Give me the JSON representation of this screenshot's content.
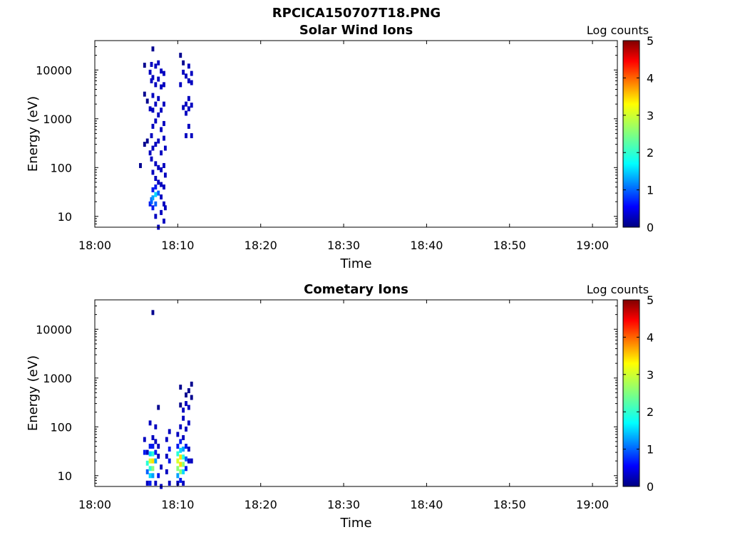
{
  "figure_title": "RPCICA150707T18.PNG",
  "colors": {
    "bins": [
      "#00008f",
      "#0000c0",
      "#0018f0",
      "#0060ff",
      "#00a0ff",
      "#00d8ff",
      "#28ffd8",
      "#88ff78",
      "#d8ff28",
      "#ffe000"
    ]
  },
  "chart_data": [
    {
      "type": "heatmap",
      "title": "Solar Wind Ions",
      "xlabel": "Time",
      "ylabel": "Energy (eV)",
      "x_unit": "time of day (HH:MM)",
      "xlim": [
        "18:00",
        "19:03"
      ],
      "xticks": [
        "18:00",
        "18:10",
        "18:20",
        "18:30",
        "18:40",
        "18:50",
        "19:00"
      ],
      "ylim_eV": [
        6,
        40000
      ],
      "yscale": "log",
      "yticks": [
        "10",
        "100",
        "1000",
        "10000"
      ],
      "colorbar": {
        "label": "Log counts",
        "range": [
          0,
          5
        ],
        "ticks": [
          "0",
          "1",
          "2",
          "3",
          "4",
          "5"
        ]
      },
      "grid": false,
      "cells": [
        [
          "18:05:30",
          110,
          0.2
        ],
        [
          "18:06:00",
          300,
          0.2
        ],
        [
          "18:06:00",
          3200,
          0.2
        ],
        [
          "18:06:00",
          12500,
          0.2
        ],
        [
          "18:06:20",
          350,
          0.2
        ],
        [
          "18:06:20",
          2300,
          0.2
        ],
        [
          "18:06:40",
          18,
          0.7
        ],
        [
          "18:06:40",
          200,
          0.3
        ],
        [
          "18:06:40",
          1600,
          0.3
        ],
        [
          "18:06:40",
          9000,
          0.3
        ],
        [
          "18:06:50",
          20,
          0.9
        ],
        [
          "18:06:50",
          22,
          1.0
        ],
        [
          "18:06:50",
          150,
          0.3
        ],
        [
          "18:06:50",
          450,
          0.3
        ],
        [
          "18:06:50",
          6000,
          0.3
        ],
        [
          "18:06:50",
          13000,
          0.3
        ],
        [
          "18:07:00",
          15,
          0.6
        ],
        [
          "18:07:00",
          24,
          1.2
        ],
        [
          "18:07:00",
          35,
          0.6
        ],
        [
          "18:07:00",
          80,
          0.3
        ],
        [
          "18:07:00",
          250,
          0.3
        ],
        [
          "18:07:00",
          700,
          0.3
        ],
        [
          "18:07:00",
          1500,
          0.3
        ],
        [
          "18:07:00",
          3000,
          0.3
        ],
        [
          "18:07:00",
          7000,
          0.3
        ],
        [
          "18:07:00",
          27000,
          0.2
        ],
        [
          "18:07:20",
          10,
          0.5
        ],
        [
          "18:07:20",
          18,
          0.9
        ],
        [
          "18:07:20",
          28,
          1.5
        ],
        [
          "18:07:20",
          40,
          0.8
        ],
        [
          "18:07:20",
          60,
          0.3
        ],
        [
          "18:07:20",
          120,
          0.3
        ],
        [
          "18:07:20",
          300,
          0.3
        ],
        [
          "18:07:20",
          900,
          0.3
        ],
        [
          "18:07:20",
          2000,
          0.3
        ],
        [
          "18:07:20",
          5000,
          0.3
        ],
        [
          "18:07:20",
          12000,
          0.3
        ],
        [
          "18:07:40",
          6,
          0.4
        ],
        [
          "18:07:40",
          30,
          0.9
        ],
        [
          "18:07:40",
          50,
          0.4
        ],
        [
          "18:07:40",
          100,
          0.3
        ],
        [
          "18:07:40",
          350,
          0.3
        ],
        [
          "18:07:40",
          1200,
          0.3
        ],
        [
          "18:07:40",
          2600,
          0.3
        ],
        [
          "18:07:40",
          6500,
          0.3
        ],
        [
          "18:07:40",
          14000,
          0.3
        ],
        [
          "18:08:00",
          12,
          0.4
        ],
        [
          "18:08:00",
          25,
          0.5
        ],
        [
          "18:08:00",
          45,
          0.5
        ],
        [
          "18:08:00",
          90,
          0.3
        ],
        [
          "18:08:00",
          200,
          0.3
        ],
        [
          "18:08:00",
          600,
          0.3
        ],
        [
          "18:08:00",
          1500,
          0.3
        ],
        [
          "18:08:00",
          4500,
          0.3
        ],
        [
          "18:08:00",
          9500,
          0.3
        ],
        [
          "18:08:20",
          8,
          0.4
        ],
        [
          "18:08:20",
          18,
          0.4
        ],
        [
          "18:08:20",
          40,
          0.4
        ],
        [
          "18:08:20",
          110,
          0.3
        ],
        [
          "18:08:20",
          400,
          0.3
        ],
        [
          "18:08:20",
          800,
          0.3
        ],
        [
          "18:08:20",
          2000,
          0.3
        ],
        [
          "18:08:20",
          5000,
          0.3
        ],
        [
          "18:08:20",
          8500,
          0.3
        ],
        [
          "18:08:30",
          15,
          0.3
        ],
        [
          "18:08:30",
          70,
          0.3
        ],
        [
          "18:08:30",
          250,
          0.3
        ],
        [
          "18:10:20",
          5000,
          0.3
        ],
        [
          "18:10:20",
          20000,
          0.2
        ],
        [
          "18:10:40",
          1700,
          0.3
        ],
        [
          "18:10:40",
          9000,
          0.3
        ],
        [
          "18:10:40",
          14000,
          0.2
        ],
        [
          "18:11:00",
          450,
          0.3
        ],
        [
          "18:11:00",
          1300,
          0.3
        ],
        [
          "18:11:00",
          2000,
          0.3
        ],
        [
          "18:11:00",
          7500,
          0.3
        ],
        [
          "18:11:20",
          700,
          0.3
        ],
        [
          "18:11:20",
          1600,
          0.3
        ],
        [
          "18:11:20",
          2600,
          0.3
        ],
        [
          "18:11:20",
          6000,
          0.3
        ],
        [
          "18:11:20",
          12000,
          0.3
        ],
        [
          "18:11:40",
          450,
          0.3
        ],
        [
          "18:11:40",
          1900,
          0.3
        ],
        [
          "18:11:40",
          5500,
          0.3
        ],
        [
          "18:11:40",
          8500,
          0.3
        ]
      ]
    },
    {
      "type": "heatmap",
      "title": "Cometary Ions",
      "xlabel": "Time",
      "ylabel": "Energy (eV)",
      "x_unit": "time of day (HH:MM)",
      "xlim": [
        "18:00",
        "19:03"
      ],
      "xticks": [
        "18:00",
        "18:10",
        "18:20",
        "18:30",
        "18:40",
        "18:50",
        "19:00"
      ],
      "ylim_eV": [
        6,
        40000
      ],
      "yscale": "log",
      "yticks": [
        "10",
        "100",
        "1000",
        "10000"
      ],
      "colorbar": {
        "label": "Log counts",
        "range": [
          0,
          5
        ],
        "ticks": [
          "0",
          "1",
          "2",
          "3",
          "4",
          "5"
        ]
      },
      "grid": false,
      "cells": [
        [
          "18:06:00",
          30,
          0.6
        ],
        [
          "18:06:00",
          55,
          0.3
        ],
        [
          "18:06:20",
          7,
          0.5
        ],
        [
          "18:06:20",
          12,
          0.9
        ],
        [
          "18:06:20",
          18,
          1.8
        ],
        [
          "18:06:20",
          30,
          0.5
        ],
        [
          "18:06:40",
          7,
          0.8
        ],
        [
          "18:06:40",
          10,
          1.5
        ],
        [
          "18:06:40",
          14,
          2.0
        ],
        [
          "18:06:40",
          20,
          2.6
        ],
        [
          "18:06:40",
          28,
          1.6
        ],
        [
          "18:06:40",
          40,
          0.6
        ],
        [
          "18:06:40",
          120,
          0.3
        ],
        [
          "18:07:00",
          10,
          1.2
        ],
        [
          "18:07:00",
          14,
          2.2
        ],
        [
          "18:07:00",
          20,
          2.7
        ],
        [
          "18:07:00",
          28,
          2.0
        ],
        [
          "18:07:00",
          40,
          0.8
        ],
        [
          "18:07:00",
          60,
          0.3
        ],
        [
          "18:07:00",
          22000,
          0.2
        ],
        [
          "18:07:20",
          7,
          0.5
        ],
        [
          "18:07:20",
          20,
          1.2
        ],
        [
          "18:07:20",
          30,
          0.8
        ],
        [
          "18:07:20",
          50,
          0.4
        ],
        [
          "18:07:20",
          100,
          0.3
        ],
        [
          "18:07:40",
          10,
          0.6
        ],
        [
          "18:07:40",
          25,
          0.5
        ],
        [
          "18:07:40",
          40,
          0.3
        ],
        [
          "18:07:40",
          250,
          0.2
        ],
        [
          "18:08:00",
          6,
          0.4
        ],
        [
          "18:08:00",
          15,
          0.3
        ],
        [
          "18:08:40",
          12,
          0.4
        ],
        [
          "18:08:40",
          25,
          0.5
        ],
        [
          "18:08:40",
          55,
          0.3
        ],
        [
          "18:09:00",
          7,
          0.4
        ],
        [
          "18:09:00",
          20,
          0.6
        ],
        [
          "18:09:00",
          35,
          0.6
        ],
        [
          "18:09:00",
          80,
          0.3
        ],
        [
          "18:10:00",
          7,
          0.5
        ],
        [
          "18:10:00",
          10,
          1.4
        ],
        [
          "18:10:00",
          14,
          2.2
        ],
        [
          "18:10:00",
          20,
          2.5
        ],
        [
          "18:10:00",
          28,
          1.8
        ],
        [
          "18:10:00",
          40,
          0.8
        ],
        [
          "18:10:00",
          70,
          0.3
        ],
        [
          "18:10:20",
          8,
          0.8
        ],
        [
          "18:10:20",
          12,
          2.2
        ],
        [
          "18:10:20",
          17,
          2.9
        ],
        [
          "18:10:20",
          24,
          2.7
        ],
        [
          "18:10:20",
          33,
          1.6
        ],
        [
          "18:10:20",
          50,
          0.7
        ],
        [
          "18:10:20",
          100,
          0.3
        ],
        [
          "18:10:20",
          280,
          0.2
        ],
        [
          "18:10:20",
          650,
          0.2
        ],
        [
          "18:10:40",
          7,
          0.4
        ],
        [
          "18:10:40",
          12,
          1.6
        ],
        [
          "18:10:40",
          17,
          2.3
        ],
        [
          "18:10:40",
          24,
          2.0
        ],
        [
          "18:10:40",
          35,
          1.2
        ],
        [
          "18:10:40",
          60,
          0.4
        ],
        [
          "18:10:40",
          150,
          0.3
        ],
        [
          "18:10:40",
          220,
          0.3
        ],
        [
          "18:11:00",
          14,
          0.8
        ],
        [
          "18:11:00",
          22,
          1.0
        ],
        [
          "18:11:00",
          40,
          0.6
        ],
        [
          "18:11:00",
          90,
          0.3
        ],
        [
          "18:11:00",
          300,
          0.3
        ],
        [
          "18:11:00",
          450,
          0.2
        ],
        [
          "18:11:20",
          20,
          0.5
        ],
        [
          "18:11:20",
          35,
          0.3
        ],
        [
          "18:11:20",
          120,
          0.3
        ],
        [
          "18:11:20",
          250,
          0.3
        ],
        [
          "18:11:20",
          550,
          0.2
        ],
        [
          "18:11:40",
          20,
          0.4
        ],
        [
          "18:11:40",
          400,
          0.2
        ],
        [
          "18:11:40",
          750,
          0.2
        ]
      ]
    }
  ]
}
